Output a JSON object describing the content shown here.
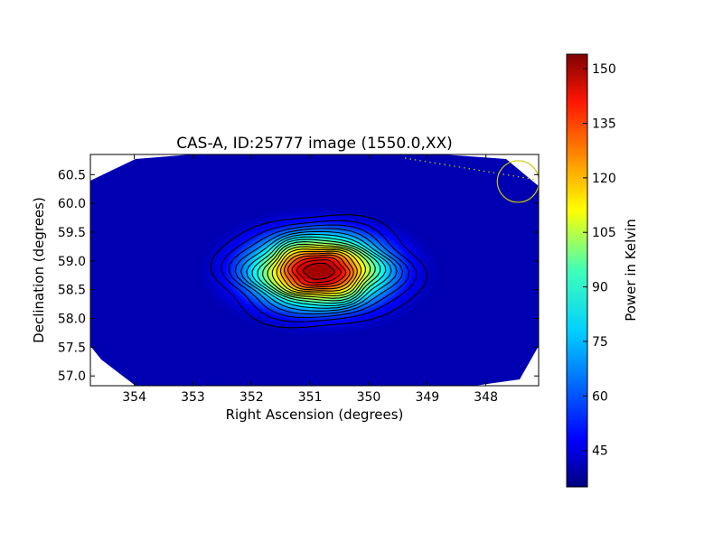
{
  "chart_data": {
    "type": "heatmap",
    "title": "CAS-A, ID:25777 image (1550.0,XX)",
    "xlabel": "Right Ascension (degrees)",
    "ylabel": "Declination (degrees)",
    "xlim": [
      354.75,
      347.1
    ],
    "ylim": [
      56.83,
      60.85
    ],
    "x_ticks": [
      354,
      353,
      352,
      351,
      350,
      349,
      348
    ],
    "y_ticks": [
      "57.0",
      "57.5",
      "58.0",
      "58.5",
      "59.0",
      "59.5",
      "60.0",
      "60.5"
    ],
    "colormap": "jet",
    "colorbar": {
      "label": "Power in Kelvin",
      "range": [
        35,
        154
      ],
      "ticks": [
        45,
        60,
        75,
        90,
        105,
        120,
        135,
        150
      ]
    },
    "source": {
      "ra": 350.85,
      "dec": 58.82,
      "peak": 154,
      "background": 38
    },
    "beam_circle": {
      "ra": 347.45,
      "dec": 60.38,
      "color": "#c8c800"
    },
    "contour_levels": [
      46,
      52,
      58,
      64,
      70,
      76,
      82,
      88,
      94,
      100,
      106,
      112,
      118,
      124,
      130,
      136,
      142,
      148
    ]
  }
}
